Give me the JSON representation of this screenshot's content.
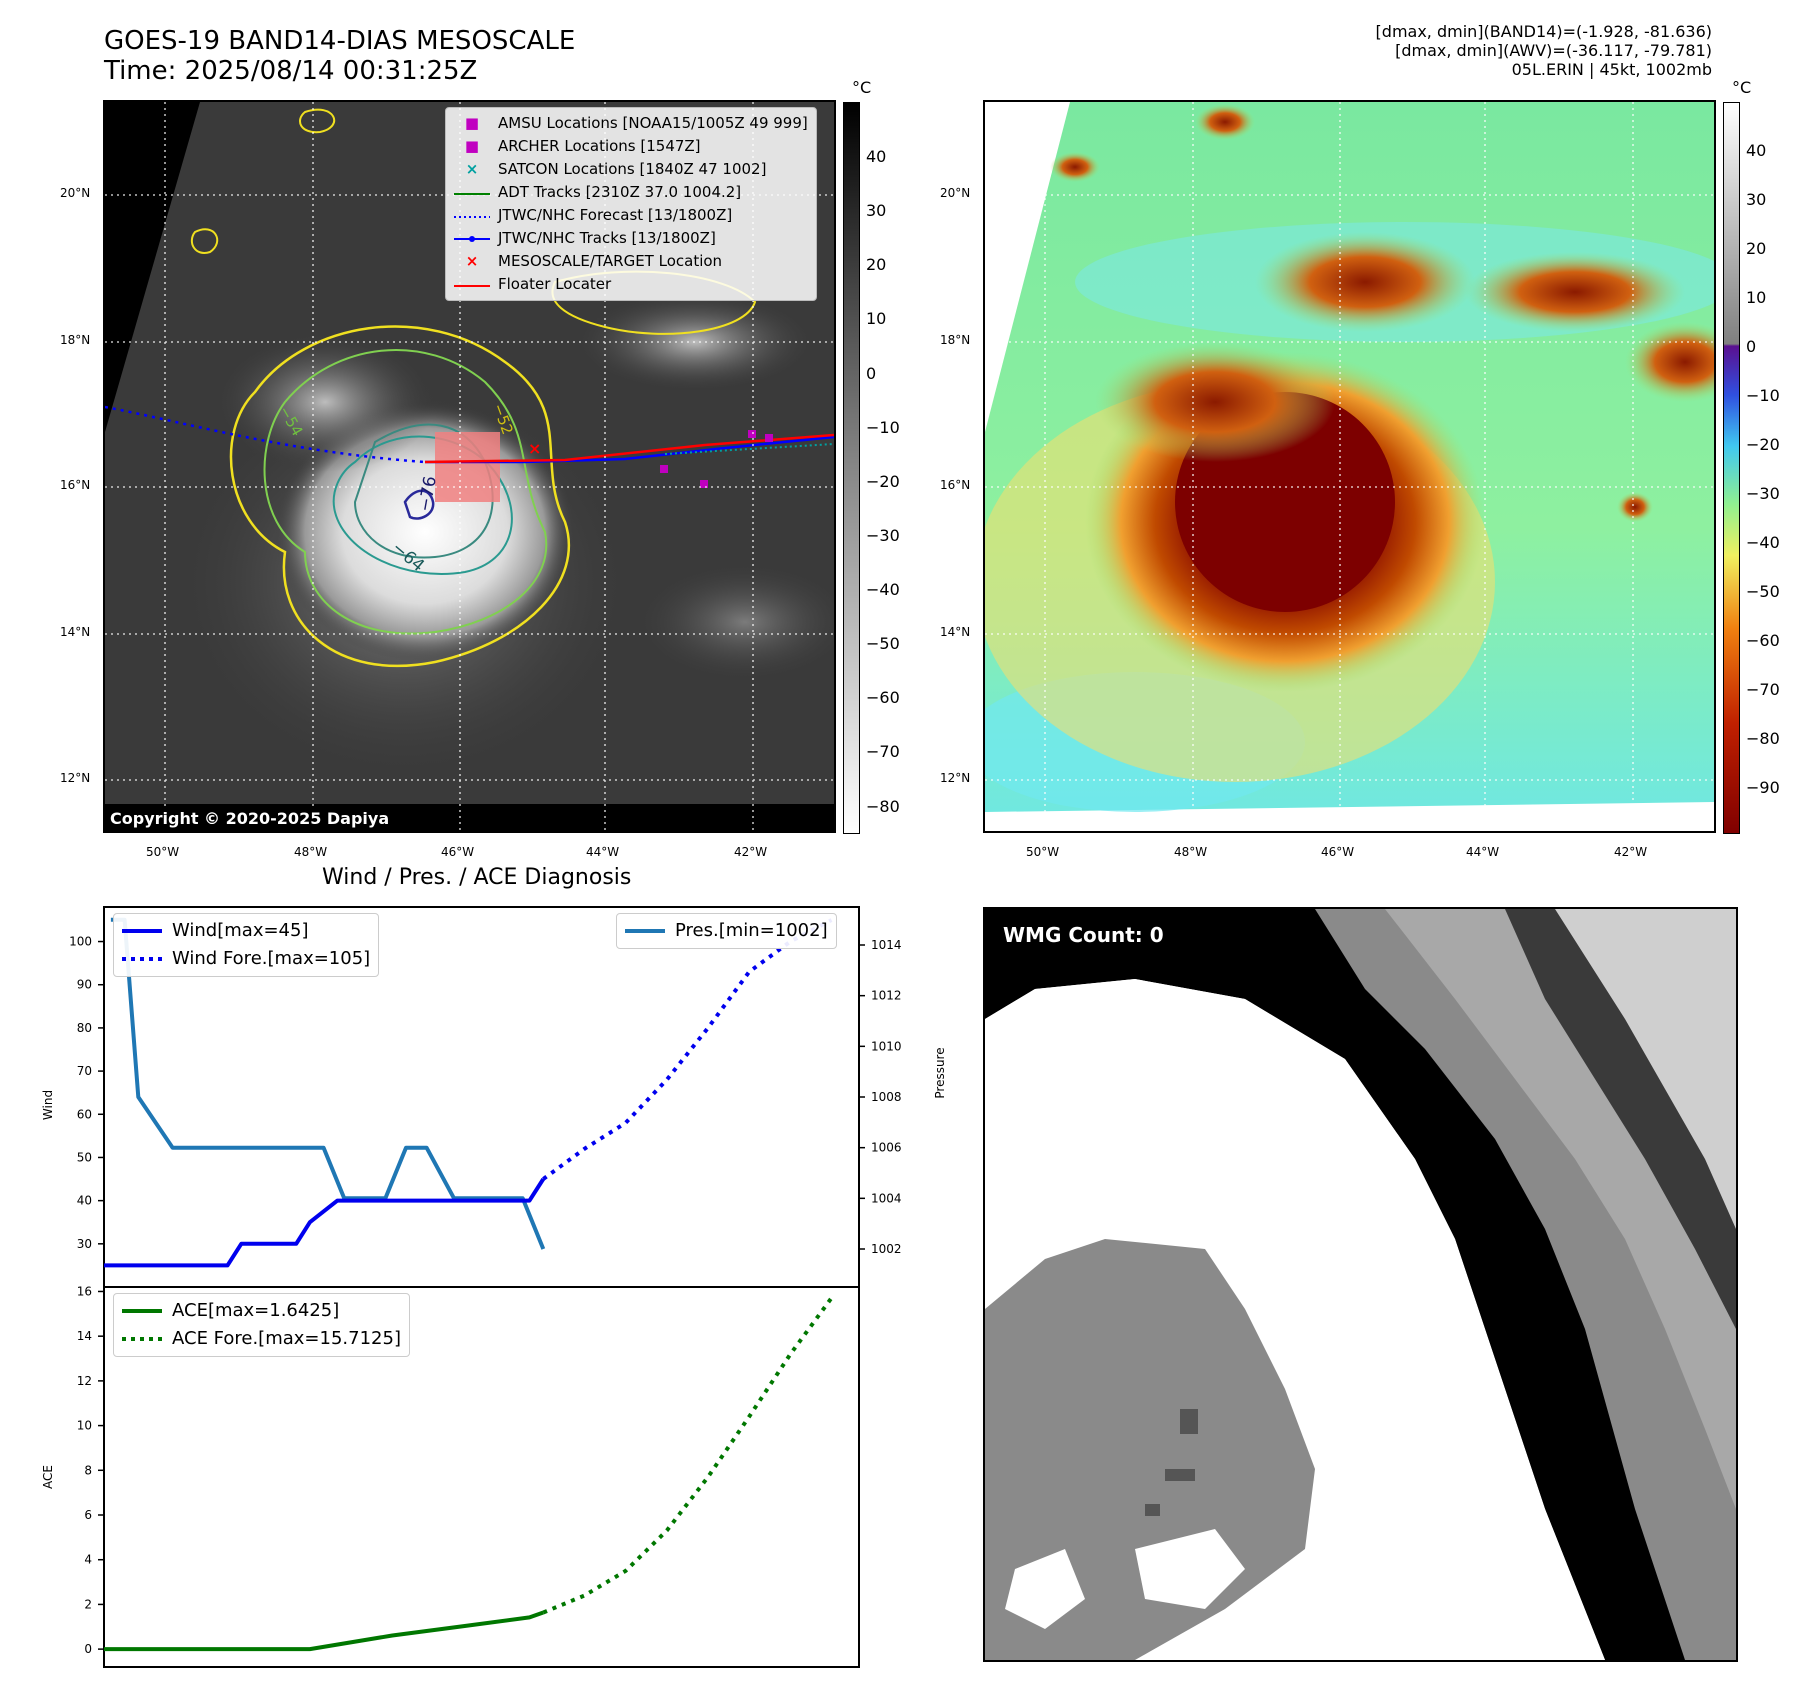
{
  "header": {
    "title_line1": "GOES-19 BAND14-DIAS MESOSCALE",
    "title_line2": "Time: 2025/08/14 00:31:25Z",
    "info_line1": "[dmax, dmin](BAND14)=(-1.928, -81.636)",
    "info_line2": "[dmax, dmin](AWV)=(-36.117, -79.781)",
    "info_line3": "05L.ERIN | 45kt, 1002mb"
  },
  "map_axes": {
    "lat_ticks": [
      "20°N",
      "18°N",
      "16°N",
      "14°N",
      "12°N"
    ],
    "lon_ticks": [
      "50°W",
      "48°W",
      "46°W",
      "44°W",
      "42°W"
    ]
  },
  "ir_panel": {
    "colorbar_unit": "°C",
    "colorbar_ticks": [
      "40",
      "30",
      "20",
      "10",
      "0",
      "−10",
      "−20",
      "−30",
      "−40",
      "−50",
      "−60",
      "−70",
      "−80"
    ],
    "contour_labels": [
      "−76",
      "−64",
      "−54",
      "−52"
    ],
    "copyright": "Copyright © 2020-2025 Dapiya",
    "legend": [
      {
        "label": "AMSU Locations [NOAA15/1005Z 49 999]",
        "symbol": "square",
        "color": "#c000c0"
      },
      {
        "label": "ARCHER Locations [1547Z]",
        "symbol": "square",
        "color": "#c000c0"
      },
      {
        "label": "SATCON Locations [1840Z 47 1002]",
        "symbol": "x",
        "color": "#00a0a0"
      },
      {
        "label": "ADT Tracks [2310Z 37.0 1004.2]",
        "symbol": "line",
        "color": "#008000"
      },
      {
        "label": "JTWC/NHC Forecast [13/1800Z]",
        "symbol": "dotted",
        "color": "#0000ff"
      },
      {
        "label": "JTWC/NHC Tracks [13/1800Z]",
        "symbol": "line-dot",
        "color": "#0000ff"
      },
      {
        "label": "MESOSCALE/TARGET Location",
        "symbol": "x",
        "color": "#ff0000"
      },
      {
        "label": "Floater Locater",
        "symbol": "line",
        "color": "#ff0000"
      }
    ]
  },
  "color_panel": {
    "colorbar_unit": "°C",
    "colorbar_ticks": [
      "40",
      "30",
      "20",
      "10",
      "0",
      "−10",
      "−20",
      "−30",
      "−40",
      "−50",
      "−60",
      "−70",
      "−80",
      "−90"
    ]
  },
  "diag_title": "Wind / Pres. / ACE Diagnosis",
  "wmg_label": "WMG Count: 0",
  "colors": {
    "wind": "#0000ee",
    "pressure": "#1f77b4",
    "ace": "#007700"
  },
  "chart_data": [
    {
      "type": "line",
      "title": "Wind / Pres. / ACE Diagnosis",
      "xlabel": "",
      "ylabel": "Wind",
      "ylabel2": "Pressure",
      "ylim": [
        20,
        108
      ],
      "ylim2": [
        1000.5,
        1015.5
      ],
      "yticks": [
        30,
        40,
        50,
        60,
        70,
        80,
        90,
        100
      ],
      "yticks2": [
        1002,
        1004,
        1006,
        1008,
        1010,
        1012,
        1014
      ],
      "xlim": [
        0,
        22
      ],
      "series": [
        {
          "name": "Wind[max=45]",
          "style": "solid",
          "x": [
            0,
            3.6,
            4.0,
            5.6,
            6.0,
            6.8,
            12.4,
            12.8
          ],
          "values": [
            25,
            25,
            30,
            30,
            35,
            40,
            40,
            45
          ]
        },
        {
          "name": "Wind Fore.[max=105]",
          "style": "dotted",
          "x": [
            12.8,
            14.0,
            15.2,
            16.4,
            17.6,
            18.8,
            20.0,
            21.2
          ],
          "values": [
            45,
            52,
            58,
            68,
            80,
            93,
            100,
            105
          ]
        },
        {
          "name": "Pres.[min=1002]",
          "axis": "right",
          "style": "solid",
          "x": [
            0.2,
            0.6,
            1.0,
            2.0,
            6.4,
            7.0,
            8.2,
            8.8,
            9.4,
            10.2,
            11.2,
            12.2,
            12.8
          ],
          "values": [
            1015,
            1015,
            1008,
            1006,
            1006,
            1004,
            1004,
            1006,
            1006,
            1004,
            1004,
            1004,
            1002
          ]
        }
      ]
    },
    {
      "type": "line",
      "title": "",
      "xlabel": "",
      "ylabel": "ACE",
      "ylim": [
        -0.8,
        16.2
      ],
      "yticks": [
        0,
        2,
        4,
        6,
        8,
        10,
        12,
        14,
        16
      ],
      "xlim": [
        0,
        22
      ],
      "series": [
        {
          "name": "ACE[max=1.6425]",
          "style": "solid",
          "x": [
            0,
            2,
            4,
            6,
            8.4,
            10.4,
            12.4,
            12.8
          ],
          "values": [
            0,
            0,
            0,
            0,
            0.61,
            1.01,
            1.42,
            1.64
          ]
        },
        {
          "name": "ACE Fore.[max=15.7125]",
          "style": "dotted",
          "x": [
            12.8,
            14.0,
            15.2,
            16.4,
            17.6,
            18.8,
            20.0,
            21.2
          ],
          "values": [
            1.64,
            2.4,
            3.5,
            5.3,
            7.7,
            10.4,
            13.2,
            15.71
          ]
        }
      ]
    }
  ]
}
